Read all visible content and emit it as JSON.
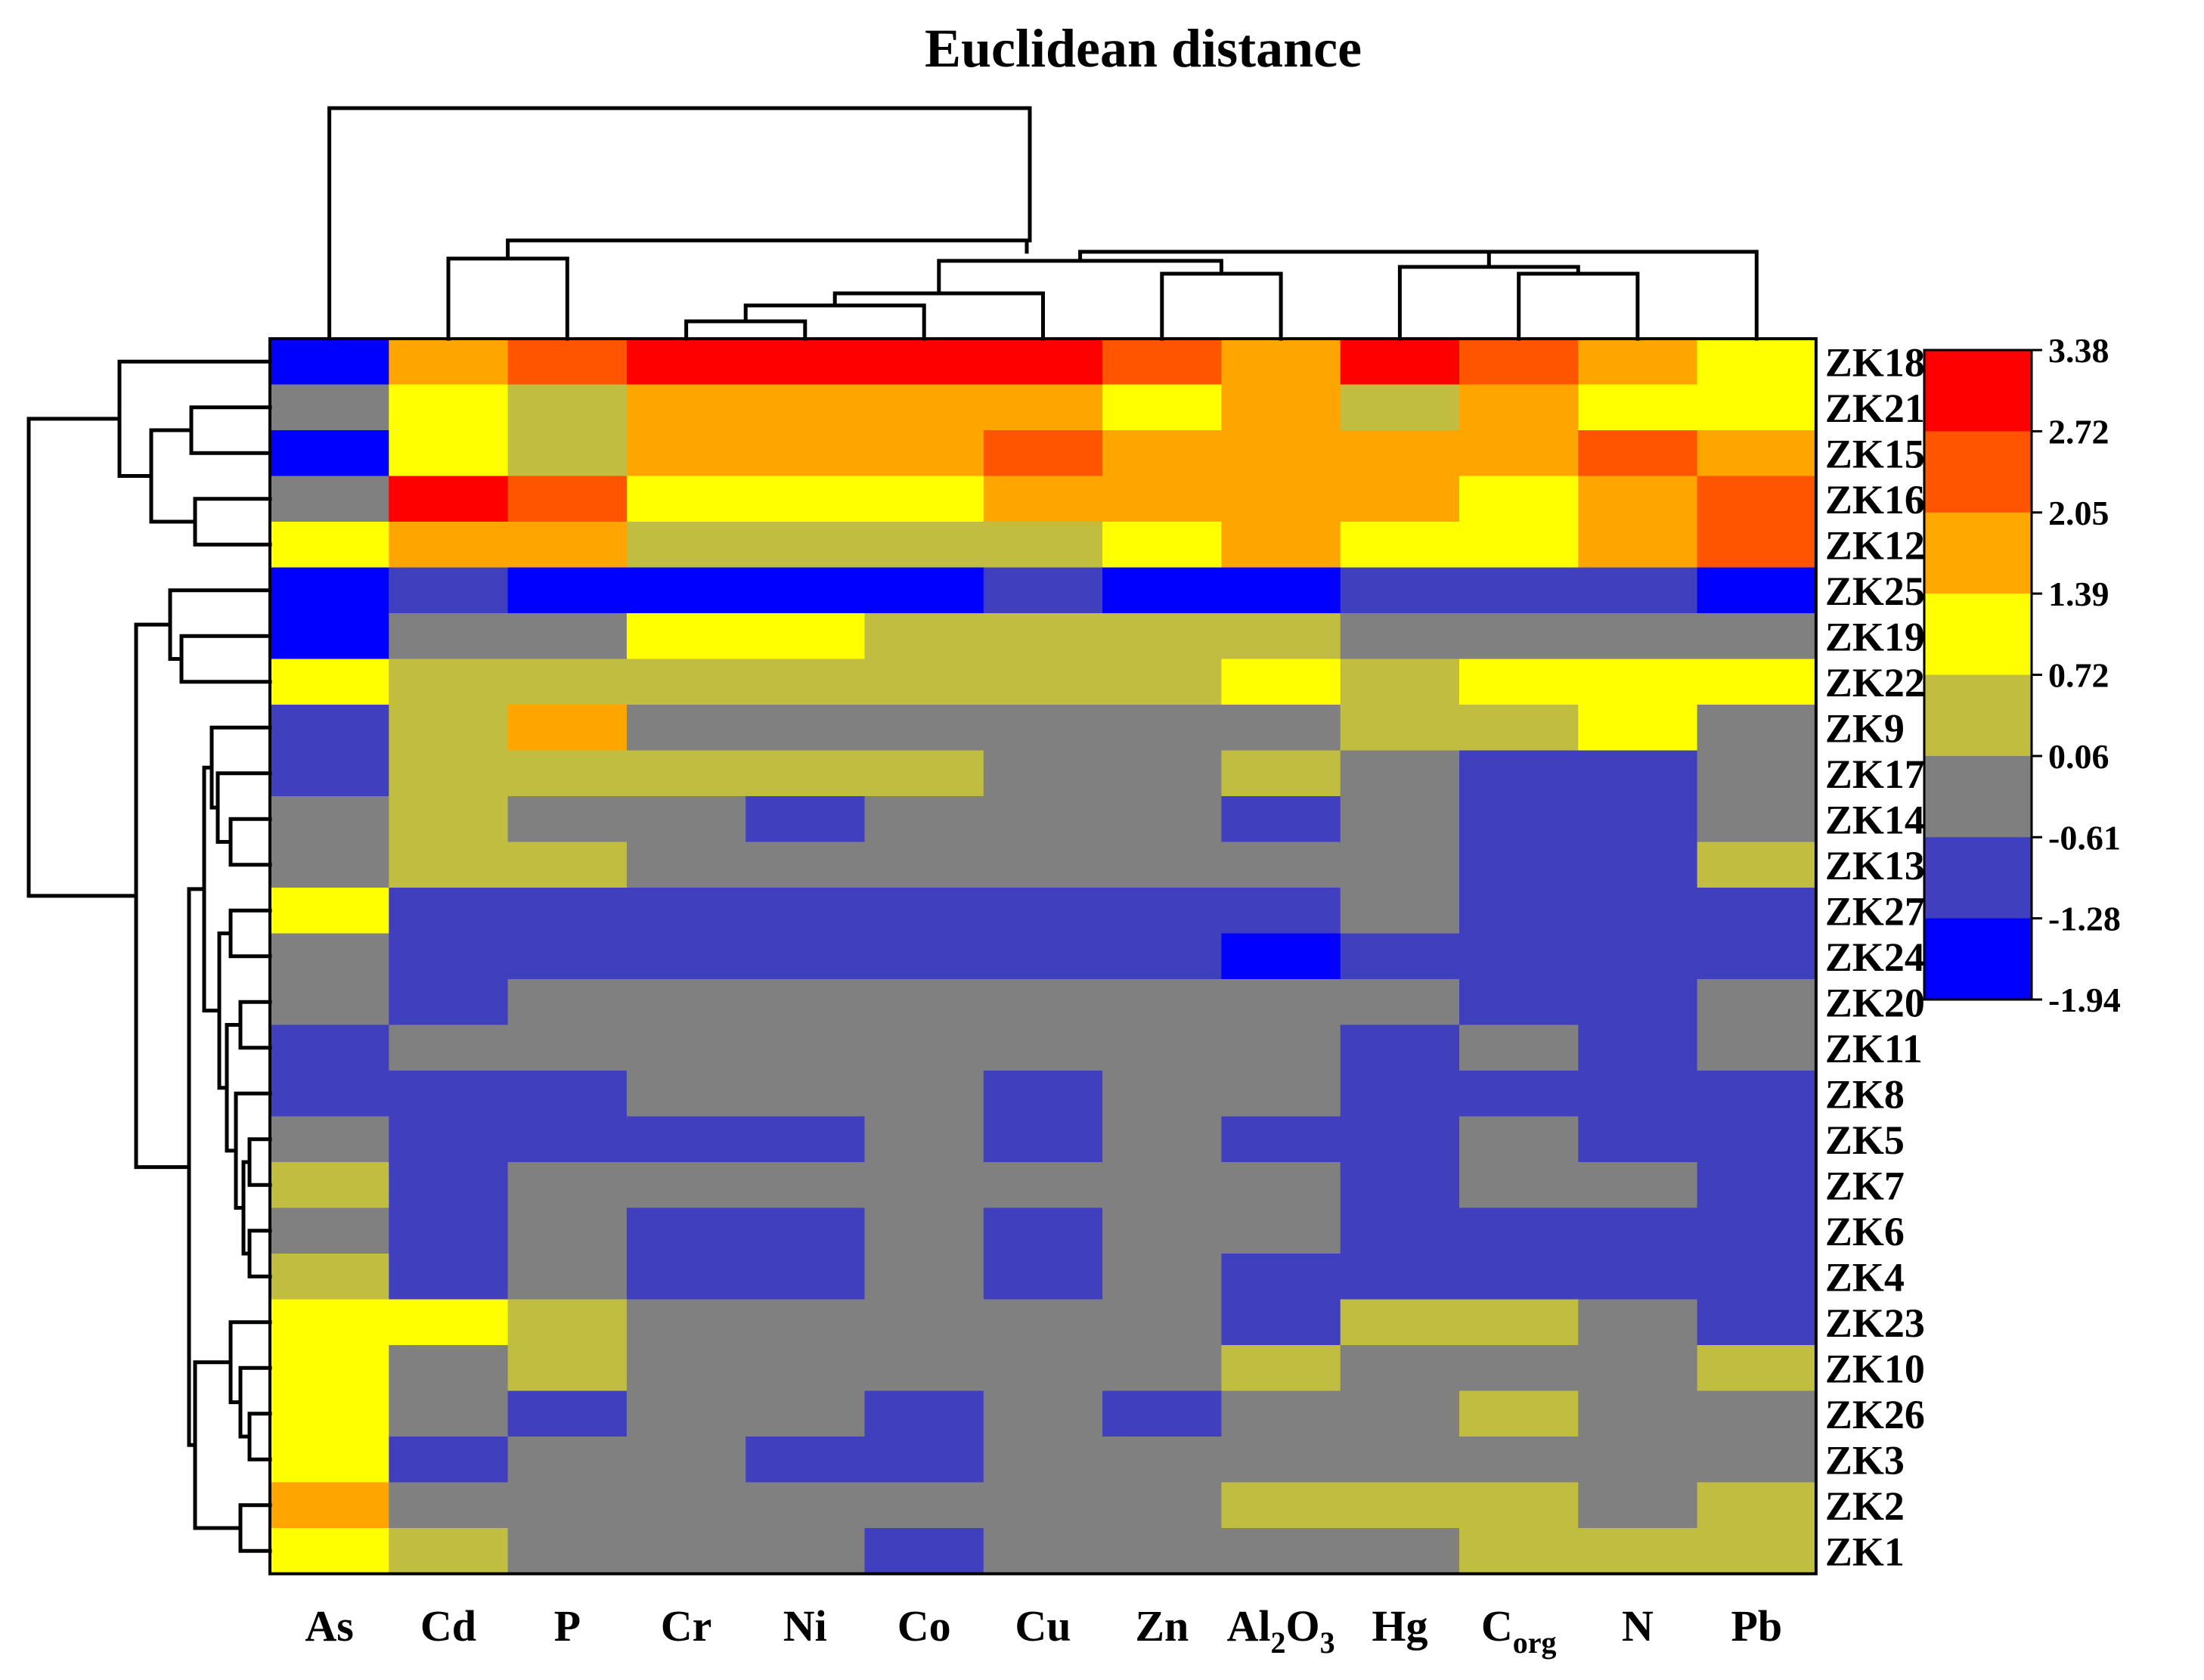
{
  "chart_data": {
    "type": "heatmap",
    "title": "Euclidean distance",
    "columns": [
      {
        "base": "As",
        "sub": "",
        "post": ""
      },
      {
        "base": "Cd",
        "sub": "",
        "post": ""
      },
      {
        "base": "P",
        "sub": "",
        "post": ""
      },
      {
        "base": "Cr",
        "sub": "",
        "post": ""
      },
      {
        "base": "Ni",
        "sub": "",
        "post": ""
      },
      {
        "base": "Co",
        "sub": "",
        "post": ""
      },
      {
        "base": "Cu",
        "sub": "",
        "post": ""
      },
      {
        "base": "Zn",
        "sub": "",
        "post": ""
      },
      {
        "base": "Al",
        "sub": "2",
        "post": "O",
        "sub2": "3"
      },
      {
        "base": "Hg",
        "sub": "",
        "post": ""
      },
      {
        "base": "C",
        "sub": "org",
        "post": ""
      },
      {
        "base": "N",
        "sub": "",
        "post": ""
      },
      {
        "base": "Pb",
        "sub": "",
        "post": ""
      }
    ],
    "rows": [
      "ZK18",
      "ZK21",
      "ZK15",
      "ZK16",
      "ZK12",
      "ZK25",
      "ZK19",
      "ZK22",
      "ZK9",
      "ZK17",
      "ZK14",
      "ZK13",
      "ZK27",
      "ZK24",
      "ZK20",
      "ZK11",
      "ZK8",
      "ZK5",
      "ZK7",
      "ZK6",
      "ZK4",
      "ZK23",
      "ZK10",
      "ZK26",
      "ZK3",
      "ZK2",
      "ZK1"
    ],
    "value_levels": [
      -1.61,
      -0.95,
      -0.28,
      0.39,
      1.06,
      1.72,
      2.39,
      3.05
    ],
    "matrix": [
      [
        0,
        5,
        6,
        7,
        7,
        7,
        7,
        6,
        5,
        7,
        6,
        5,
        4
      ],
      [
        2,
        4,
        3,
        5,
        5,
        5,
        5,
        4,
        5,
        3,
        5,
        4,
        4
      ],
      [
        0,
        4,
        3,
        5,
        5,
        5,
        6,
        5,
        5,
        5,
        5,
        6,
        5
      ],
      [
        2,
        7,
        6,
        4,
        4,
        4,
        5,
        5,
        5,
        5,
        4,
        5,
        6
      ],
      [
        4,
        5,
        5,
        3,
        3,
        3,
        3,
        4,
        5,
        4,
        4,
        5,
        6
      ],
      [
        0,
        1,
        0,
        0,
        0,
        0,
        1,
        0,
        0,
        1,
        1,
        1,
        0
      ],
      [
        0,
        2,
        2,
        4,
        4,
        3,
        3,
        3,
        3,
        2,
        2,
        2,
        2
      ],
      [
        4,
        3,
        3,
        3,
        3,
        3,
        3,
        3,
        4,
        3,
        4,
        4,
        4
      ],
      [
        1,
        3,
        5,
        2,
        2,
        2,
        2,
        2,
        2,
        3,
        3,
        4,
        2
      ],
      [
        1,
        3,
        3,
        3,
        3,
        3,
        2,
        2,
        3,
        2,
        1,
        1,
        2
      ],
      [
        2,
        3,
        2,
        2,
        1,
        2,
        2,
        2,
        1,
        2,
        1,
        1,
        2
      ],
      [
        2,
        3,
        3,
        2,
        2,
        2,
        2,
        2,
        2,
        2,
        1,
        1,
        3
      ],
      [
        4,
        1,
        1,
        1,
        1,
        1,
        1,
        1,
        1,
        2,
        1,
        1,
        1
      ],
      [
        2,
        1,
        1,
        1,
        1,
        1,
        1,
        1,
        0,
        1,
        1,
        1,
        1
      ],
      [
        2,
        1,
        2,
        2,
        2,
        2,
        2,
        2,
        2,
        2,
        1,
        1,
        2
      ],
      [
        1,
        2,
        2,
        2,
        2,
        2,
        2,
        2,
        2,
        1,
        2,
        1,
        2
      ],
      [
        1,
        1,
        1,
        2,
        2,
        2,
        1,
        2,
        2,
        1,
        1,
        1,
        1
      ],
      [
        2,
        1,
        1,
        1,
        1,
        2,
        1,
        2,
        1,
        1,
        2,
        1,
        1
      ],
      [
        3,
        1,
        2,
        2,
        2,
        2,
        2,
        2,
        2,
        1,
        2,
        2,
        1
      ],
      [
        2,
        1,
        2,
        1,
        1,
        2,
        1,
        2,
        2,
        1,
        1,
        1,
        1
      ],
      [
        3,
        1,
        2,
        1,
        1,
        2,
        1,
        2,
        1,
        1,
        1,
        1,
        1
      ],
      [
        4,
        4,
        3,
        2,
        2,
        2,
        2,
        2,
        1,
        3,
        3,
        2,
        1
      ],
      [
        4,
        2,
        3,
        2,
        2,
        2,
        2,
        2,
        3,
        2,
        2,
        2,
        3
      ],
      [
        4,
        2,
        1,
        2,
        2,
        1,
        2,
        1,
        2,
        2,
        3,
        2,
        2
      ],
      [
        4,
        1,
        2,
        2,
        1,
        1,
        2,
        2,
        2,
        2,
        2,
        2,
        2
      ],
      [
        5,
        2,
        2,
        2,
        2,
        2,
        2,
        2,
        3,
        3,
        3,
        2,
        3
      ],
      [
        4,
        3,
        2,
        2,
        2,
        1,
        2,
        2,
        2,
        2,
        3,
        3,
        3
      ]
    ],
    "legend": {
      "placement": "right",
      "tick_labels": [
        "3.38",
        "2.72",
        "2.05",
        "1.39",
        "0.72",
        "0.06",
        "-0.61",
        "-1.28",
        "-1.94"
      ],
      "colors": [
        "#ff0000",
        "#ff5400",
        "#ffa800",
        "#ffff00",
        "#c0bd3f",
        "#7f7f7f",
        "#4040bf",
        "#0000ff"
      ]
    },
    "colormap": [
      "#0000ff",
      "#4040bf",
      "#808080",
      "#c0bd40",
      "#ffff00",
      "#ffa500",
      "#ff5500",
      "#ff0000"
    ],
    "column_dendrogram": [
      {
        "l": 0,
        "r": 0,
        "h": 1.3
      },
      {
        "l": 0,
        "r": 1,
        "h": 1.11
      },
      {
        "l": 0,
        "r": 2,
        "h": 0.29
      },
      {
        "l": 0,
        "r": 6,
        "h": 0.4
      },
      {
        "l": 1,
        "r": 2,
        "h": 0.32
      },
      {
        "l": 1,
        "r": 0,
        "h": 0.83
      },
      {
        "l": 1,
        "r": 3,
        "h": 0.5
      },
      {
        "l": 3,
        "r": 2,
        "h": 0.2
      },
      {
        "l": 3,
        "r": 4,
        "h": 0.14
      },
      {
        "l": 4,
        "r": 5,
        "h": 0.06
      },
      {
        "l": 4,
        "r": 6,
        "h": 0.25
      },
      {
        "l": 5,
        "r": 8,
        "h": 0.03
      },
      {
        "l": 5,
        "r": 9,
        "h": 0.11
      }
    ],
    "row_dendrogram_order": [
      "ZK18",
      "ZK21",
      "ZK15",
      "ZK16",
      "ZK12",
      "ZK25",
      "ZK19",
      "ZK22",
      "ZK9",
      "ZK17",
      "ZK14",
      "ZK13",
      "ZK27",
      "ZK24",
      "ZK20",
      "ZK11",
      "ZK8",
      "ZK5",
      "ZK7",
      "ZK6",
      "ZK4",
      "ZK23",
      "ZK10",
      "ZK26",
      "ZK3",
      "ZK2",
      "ZK1"
    ]
  }
}
